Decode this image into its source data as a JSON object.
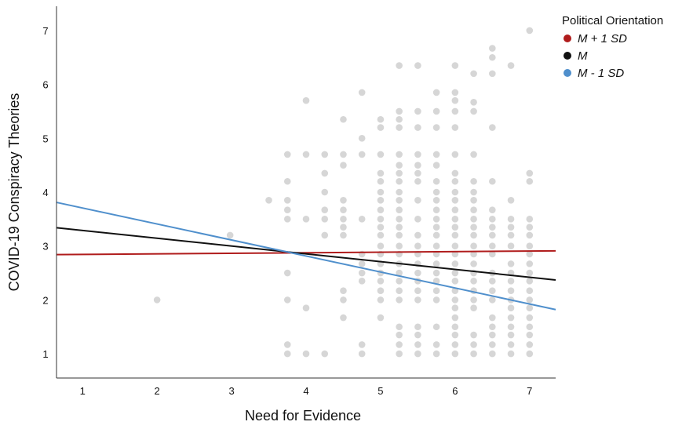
{
  "chart_data": {
    "type": "scatter",
    "xlabel": "Need for Evidence",
    "ylabel": "COVID-19 Conspiracy Theories",
    "xlim": [
      0.65,
      7.35
    ],
    "ylim": [
      0.55,
      7.45
    ],
    "xticks": [
      1,
      2,
      3,
      4,
      5,
      6,
      7
    ],
    "yticks": [
      1,
      2,
      3,
      4,
      5,
      6,
      7
    ],
    "grid": false,
    "legend": {
      "title": "Political Orientation",
      "placement": "top-right",
      "entries": [
        "M + 1 SD",
        "M",
        "M  - 1 SD"
      ]
    },
    "series": [
      {
        "name": "M + 1 SD",
        "color": "#b01c1c",
        "x": [
          0.65,
          7.35
        ],
        "y": [
          2.84,
          2.91
        ]
      },
      {
        "name": "M",
        "color": "#111111",
        "x": [
          0.65,
          7.35
        ],
        "y": [
          3.34,
          2.37
        ]
      },
      {
        "name": "M  - 1 SD",
        "color": "#4f8fcc",
        "x": [
          0.65,
          7.35
        ],
        "y": [
          3.81,
          1.82
        ]
      }
    ],
    "scatter_color": "#d6d6d6",
    "points": [
      [
        2.0,
        2.0
      ],
      [
        2.98,
        3.2
      ],
      [
        3.5,
        3.85
      ],
      [
        3.75,
        1.0
      ],
      [
        3.75,
        1.17
      ],
      [
        3.75,
        2.0
      ],
      [
        3.75,
        2.5
      ],
      [
        3.75,
        3.5
      ],
      [
        3.75,
        3.67
      ],
      [
        3.75,
        3.85
      ],
      [
        3.75,
        4.2
      ],
      [
        3.75,
        4.7
      ],
      [
        4.0,
        1.0
      ],
      [
        4.0,
        1.85
      ],
      [
        4.0,
        3.5
      ],
      [
        4.0,
        4.7
      ],
      [
        4.0,
        5.7
      ],
      [
        4.25,
        1.0
      ],
      [
        4.25,
        3.2
      ],
      [
        4.25,
        3.5
      ],
      [
        4.25,
        3.67
      ],
      [
        4.25,
        4.0
      ],
      [
        4.25,
        4.35
      ],
      [
        4.25,
        4.7
      ],
      [
        4.5,
        1.67
      ],
      [
        4.5,
        2.0
      ],
      [
        4.5,
        2.17
      ],
      [
        4.5,
        3.2
      ],
      [
        4.5,
        3.35
      ],
      [
        4.5,
        3.5
      ],
      [
        4.5,
        3.67
      ],
      [
        4.5,
        3.85
      ],
      [
        4.5,
        4.5
      ],
      [
        4.5,
        4.7
      ],
      [
        4.5,
        5.35
      ],
      [
        4.75,
        1.0
      ],
      [
        4.75,
        1.17
      ],
      [
        4.75,
        2.35
      ],
      [
        4.75,
        2.5
      ],
      [
        4.75,
        2.67
      ],
      [
        4.75,
        2.85
      ],
      [
        4.75,
        3.5
      ],
      [
        4.75,
        4.7
      ],
      [
        4.75,
        5.0
      ],
      [
        4.75,
        5.85
      ],
      [
        5.0,
        1.67
      ],
      [
        5.0,
        2.0
      ],
      [
        5.0,
        2.17
      ],
      [
        5.0,
        2.35
      ],
      [
        5.0,
        2.5
      ],
      [
        5.0,
        2.67
      ],
      [
        5.0,
        2.85
      ],
      [
        5.0,
        3.0
      ],
      [
        5.0,
        3.2
      ],
      [
        5.0,
        3.35
      ],
      [
        5.0,
        3.5
      ],
      [
        5.0,
        3.67
      ],
      [
        5.0,
        3.85
      ],
      [
        5.0,
        4.0
      ],
      [
        5.0,
        4.2
      ],
      [
        5.0,
        4.35
      ],
      [
        5.0,
        4.7
      ],
      [
        5.0,
        5.2
      ],
      [
        5.0,
        5.35
      ],
      [
        5.25,
        1.0
      ],
      [
        5.25,
        1.17
      ],
      [
        5.25,
        1.35
      ],
      [
        5.25,
        1.5
      ],
      [
        5.25,
        2.0
      ],
      [
        5.25,
        2.17
      ],
      [
        5.25,
        2.35
      ],
      [
        5.25,
        2.5
      ],
      [
        5.25,
        2.67
      ],
      [
        5.25,
        2.85
      ],
      [
        5.25,
        3.0
      ],
      [
        5.25,
        3.2
      ],
      [
        5.25,
        3.35
      ],
      [
        5.25,
        3.5
      ],
      [
        5.25,
        3.67
      ],
      [
        5.25,
        3.85
      ],
      [
        5.25,
        4.0
      ],
      [
        5.25,
        4.2
      ],
      [
        5.25,
        4.35
      ],
      [
        5.25,
        4.5
      ],
      [
        5.25,
        4.7
      ],
      [
        5.25,
        5.2
      ],
      [
        5.25,
        5.35
      ],
      [
        5.25,
        5.5
      ],
      [
        5.25,
        6.35
      ],
      [
        5.5,
        1.0
      ],
      [
        5.5,
        1.17
      ],
      [
        5.5,
        1.35
      ],
      [
        5.5,
        1.5
      ],
      [
        5.5,
        2.0
      ],
      [
        5.5,
        2.17
      ],
      [
        5.5,
        2.35
      ],
      [
        5.5,
        2.5
      ],
      [
        5.5,
        2.67
      ],
      [
        5.5,
        2.85
      ],
      [
        5.5,
        3.0
      ],
      [
        5.5,
        3.2
      ],
      [
        5.5,
        3.5
      ],
      [
        5.5,
        3.85
      ],
      [
        5.5,
        4.2
      ],
      [
        5.5,
        4.35
      ],
      [
        5.5,
        4.5
      ],
      [
        5.5,
        4.7
      ],
      [
        5.5,
        5.2
      ],
      [
        5.5,
        5.5
      ],
      [
        5.5,
        6.35
      ],
      [
        5.75,
        1.0
      ],
      [
        5.75,
        1.17
      ],
      [
        5.75,
        1.5
      ],
      [
        5.75,
        2.0
      ],
      [
        5.75,
        2.17
      ],
      [
        5.75,
        2.35
      ],
      [
        5.75,
        2.5
      ],
      [
        5.75,
        2.67
      ],
      [
        5.75,
        2.85
      ],
      [
        5.75,
        3.0
      ],
      [
        5.75,
        3.2
      ],
      [
        5.75,
        3.35
      ],
      [
        5.75,
        3.5
      ],
      [
        5.75,
        3.67
      ],
      [
        5.75,
        3.85
      ],
      [
        5.75,
        4.0
      ],
      [
        5.75,
        4.2
      ],
      [
        5.75,
        4.5
      ],
      [
        5.75,
        4.7
      ],
      [
        5.75,
        5.2
      ],
      [
        5.75,
        5.5
      ],
      [
        5.75,
        5.85
      ],
      [
        6.0,
        1.0
      ],
      [
        6.0,
        1.17
      ],
      [
        6.0,
        1.35
      ],
      [
        6.0,
        1.5
      ],
      [
        6.0,
        1.67
      ],
      [
        6.0,
        1.85
      ],
      [
        6.0,
        2.0
      ],
      [
        6.0,
        2.17
      ],
      [
        6.0,
        2.35
      ],
      [
        6.0,
        2.5
      ],
      [
        6.0,
        2.67
      ],
      [
        6.0,
        2.85
      ],
      [
        6.0,
        3.0
      ],
      [
        6.0,
        3.2
      ],
      [
        6.0,
        3.35
      ],
      [
        6.0,
        3.5
      ],
      [
        6.0,
        3.67
      ],
      [
        6.0,
        3.85
      ],
      [
        6.0,
        4.0
      ],
      [
        6.0,
        4.2
      ],
      [
        6.0,
        4.35
      ],
      [
        6.0,
        4.7
      ],
      [
        6.0,
        5.2
      ],
      [
        6.0,
        5.5
      ],
      [
        6.0,
        5.7
      ],
      [
        6.0,
        5.85
      ],
      [
        6.0,
        6.35
      ],
      [
        6.25,
        1.0
      ],
      [
        6.25,
        1.17
      ],
      [
        6.25,
        1.35
      ],
      [
        6.25,
        1.85
      ],
      [
        6.25,
        2.0
      ],
      [
        6.25,
        2.17
      ],
      [
        6.25,
        2.35
      ],
      [
        6.25,
        2.5
      ],
      [
        6.25,
        2.67
      ],
      [
        6.25,
        2.85
      ],
      [
        6.25,
        3.0
      ],
      [
        6.25,
        3.2
      ],
      [
        6.25,
        3.35
      ],
      [
        6.25,
        3.5
      ],
      [
        6.25,
        3.67
      ],
      [
        6.25,
        3.85
      ],
      [
        6.25,
        4.0
      ],
      [
        6.25,
        4.2
      ],
      [
        6.25,
        4.7
      ],
      [
        6.25,
        5.5
      ],
      [
        6.25,
        5.67
      ],
      [
        6.25,
        6.2
      ],
      [
        6.5,
        1.0
      ],
      [
        6.5,
        1.17
      ],
      [
        6.5,
        1.35
      ],
      [
        6.5,
        1.5
      ],
      [
        6.5,
        1.67
      ],
      [
        6.5,
        2.0
      ],
      [
        6.5,
        2.17
      ],
      [
        6.5,
        2.35
      ],
      [
        6.5,
        2.5
      ],
      [
        6.5,
        2.85
      ],
      [
        6.5,
        3.0
      ],
      [
        6.5,
        3.2
      ],
      [
        6.5,
        3.35
      ],
      [
        6.5,
        3.5
      ],
      [
        6.5,
        3.67
      ],
      [
        6.5,
        4.2
      ],
      [
        6.5,
        5.2
      ],
      [
        6.5,
        6.2
      ],
      [
        6.5,
        6.5
      ],
      [
        6.5,
        6.67
      ],
      [
        6.75,
        1.0
      ],
      [
        6.75,
        1.17
      ],
      [
        6.75,
        1.35
      ],
      [
        6.75,
        1.5
      ],
      [
        6.75,
        1.67
      ],
      [
        6.75,
        1.85
      ],
      [
        6.75,
        2.0
      ],
      [
        6.75,
        2.17
      ],
      [
        6.75,
        2.35
      ],
      [
        6.75,
        2.5
      ],
      [
        6.75,
        2.67
      ],
      [
        6.75,
        3.0
      ],
      [
        6.75,
        3.2
      ],
      [
        6.75,
        3.35
      ],
      [
        6.75,
        3.5
      ],
      [
        6.75,
        3.85
      ],
      [
        6.75,
        6.35
      ],
      [
        7.0,
        1.0
      ],
      [
        7.0,
        1.17
      ],
      [
        7.0,
        1.35
      ],
      [
        7.0,
        1.5
      ],
      [
        7.0,
        1.67
      ],
      [
        7.0,
        1.85
      ],
      [
        7.0,
        2.0
      ],
      [
        7.0,
        2.17
      ],
      [
        7.0,
        2.35
      ],
      [
        7.0,
        2.5
      ],
      [
        7.0,
        2.67
      ],
      [
        7.0,
        2.85
      ],
      [
        7.0,
        3.0
      ],
      [
        7.0,
        3.2
      ],
      [
        7.0,
        3.35
      ],
      [
        7.0,
        3.5
      ],
      [
        7.0,
        4.2
      ],
      [
        7.0,
        4.35
      ],
      [
        7.0,
        7.0
      ]
    ]
  }
}
